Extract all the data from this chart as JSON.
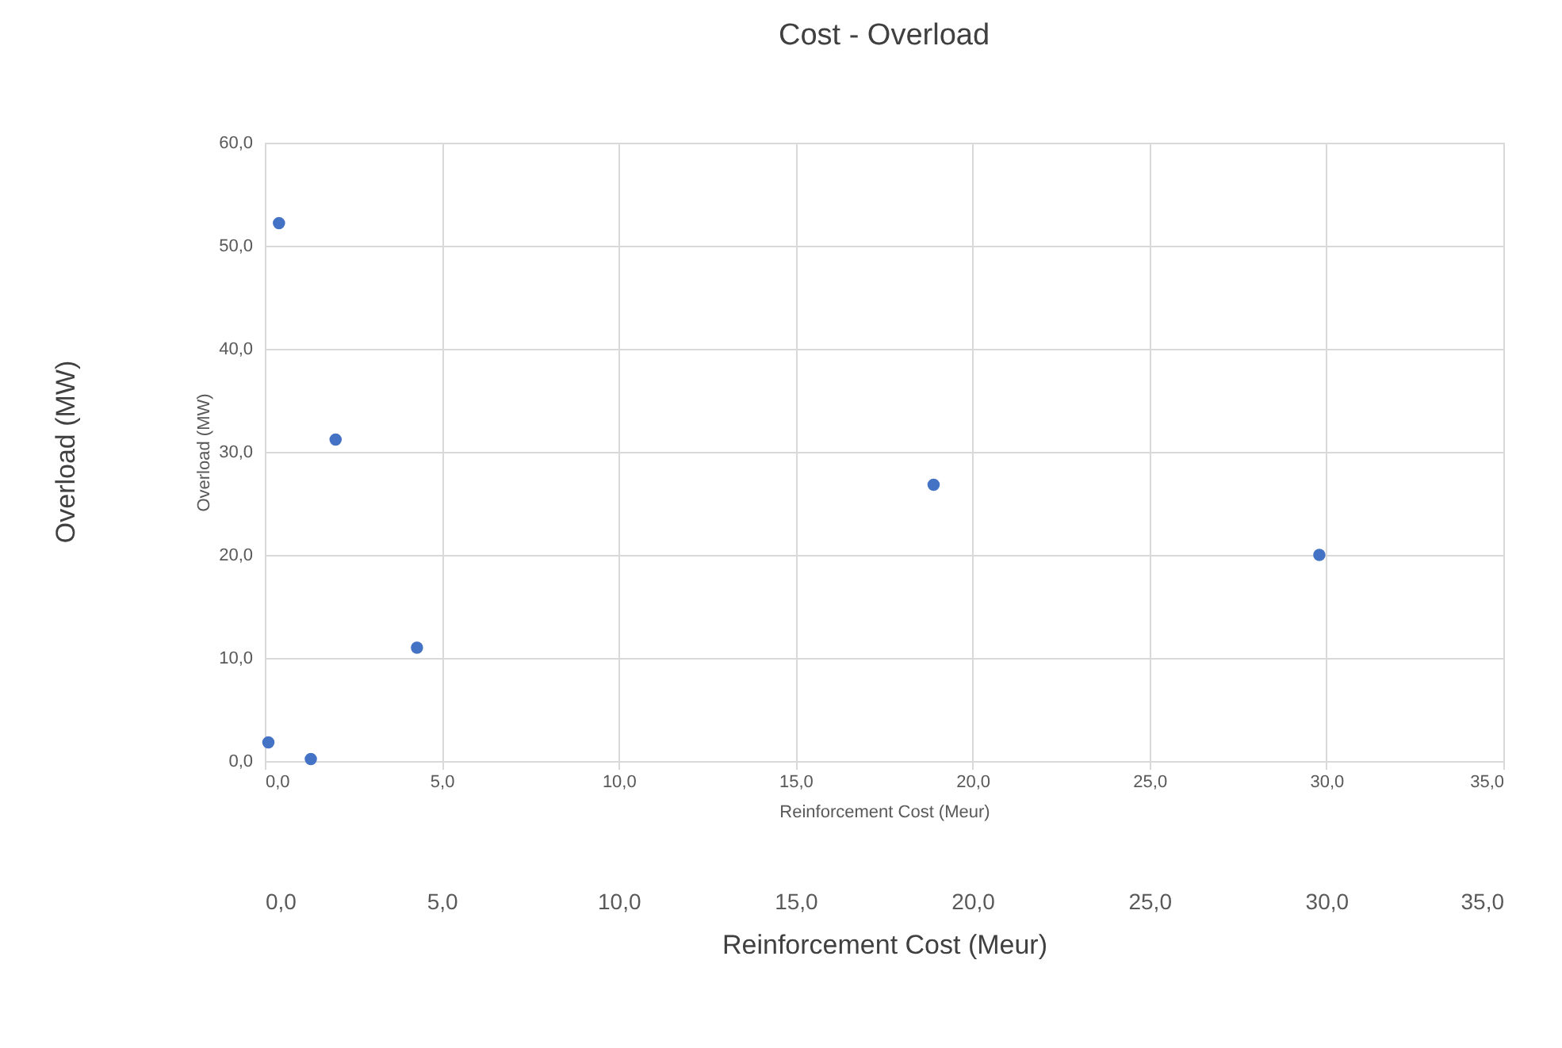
{
  "chart_data": {
    "type": "scatter",
    "title": "Cost - Overload",
    "xlabel": "Reinforcement Cost (Meur)",
    "ylabel": "Overload (MW)",
    "x2label": "Reinforcement Cost (Meur)",
    "annotations": [
      "Overload (MW)"
    ],
    "xlim": [
      0,
      35
    ],
    "xticks": [
      {
        "value": 0,
        "label": "0,0"
      },
      {
        "value": 5,
        "label": "5,0"
      },
      {
        "value": 10,
        "label": "10,0"
      },
      {
        "value": 15,
        "label": "15,0"
      },
      {
        "value": 20,
        "label": "20,0"
      },
      {
        "value": 25,
        "label": "25,0"
      },
      {
        "value": 30,
        "label": "30,0"
      },
      {
        "value": 35,
        "label": "35,0"
      }
    ],
    "x2lim": [
      0,
      35
    ],
    "x2ticks": [
      {
        "value": 0,
        "label": "0,0"
      },
      {
        "value": 5,
        "label": "5,0"
      },
      {
        "value": 10,
        "label": "10,0"
      },
      {
        "value": 15,
        "label": "15,0"
      },
      {
        "value": 20,
        "label": "20,0"
      },
      {
        "value": 25,
        "label": "25,0"
      },
      {
        "value": 30,
        "label": "30,0"
      },
      {
        "value": 35,
        "label": "35,0"
      }
    ],
    "ylim": [
      0,
      60
    ],
    "yticks": [
      {
        "value": 0,
        "label": "0,0"
      },
      {
        "value": 10,
        "label": "10,0"
      },
      {
        "value": 20,
        "label": "20,0"
      },
      {
        "value": 30,
        "label": "30,0"
      },
      {
        "value": 40,
        "label": "40,0"
      },
      {
        "value": 50,
        "label": "50,0"
      },
      {
        "value": 60,
        "label": "60,0"
      }
    ],
    "grid": true,
    "marker": "circle",
    "series": [
      {
        "color": "#4472c4",
        "x": [
          0.1,
          0.4,
          1.3,
          2.0,
          4.3,
          18.9,
          29.8
        ],
        "values": [
          1.8,
          52.2,
          0.2,
          31.2,
          11.0,
          26.8,
          20.0
        ]
      }
    ]
  }
}
